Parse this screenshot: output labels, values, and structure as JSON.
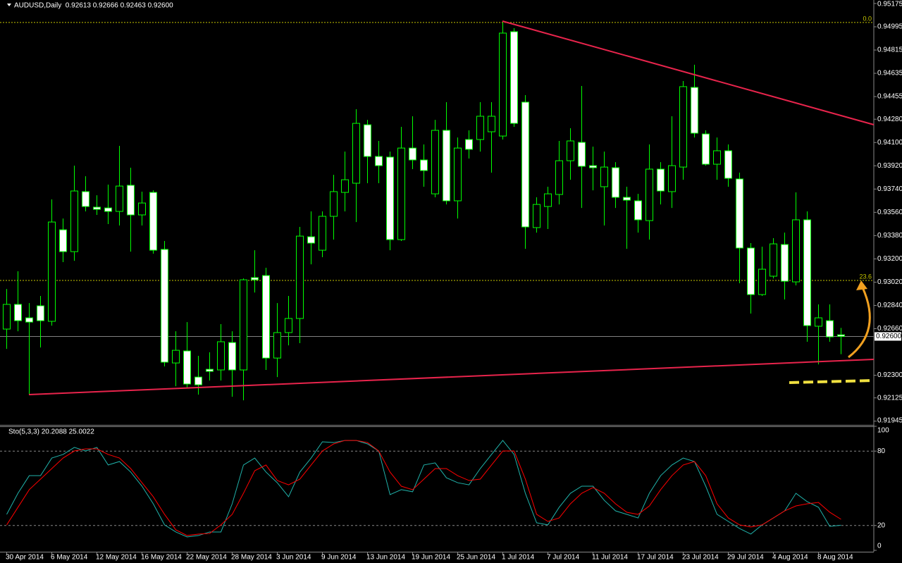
{
  "chart_data": [
    {
      "type": "candlestick",
      "title": "AUDUSD,Daily  0.92613 0.92666 0.92463 0.92600",
      "categories": [
        "30 Apr 2014",
        null,
        null,
        null,
        "6 May 2014",
        null,
        null,
        null,
        "12 May 2014",
        null,
        null,
        null,
        "16 May 2014",
        null,
        null,
        null,
        "22 May 2014",
        null,
        null,
        null,
        "28 May 2014",
        null,
        null,
        null,
        "3 Jun 2014",
        null,
        null,
        null,
        "9 Jun 2014",
        null,
        null,
        null,
        "13 Jun 2014",
        null,
        null,
        null,
        "19 Jun 2014",
        null,
        null,
        null,
        "25 Jun 2014",
        null,
        null,
        null,
        "1 Jul 2014",
        null,
        null,
        null,
        "7 Jul 2014",
        null,
        null,
        null,
        "11 Jul 2014",
        null,
        null,
        null,
        "17 Jul 2014",
        null,
        null,
        null,
        "23 Jul 2014",
        null,
        null,
        null,
        "29 Jul 2014",
        null,
        null,
        null,
        "4 Aug 2014",
        null,
        null,
        null,
        "8 Aug 2014",
        null,
        null
      ],
      "open": [
        0.92657,
        0.92848,
        0.92744,
        0.92837,
        0.92717,
        0.93425,
        0.93256,
        0.9372,
        0.936,
        0.93594,
        0.93567,
        0.93769,
        0.9354,
        0.93714,
        0.93273,
        0.92395,
        0.92488,
        0.92286,
        0.92346,
        0.92341,
        0.92553,
        0.92341,
        0.93055,
        0.93071,
        0.92433,
        0.9263,
        0.92739,
        0.93371,
        0.93267,
        0.93529,
        0.93714,
        0.93785,
        0.94237,
        0.93992,
        0.93987,
        0.93349,
        0.94057,
        0.93965,
        0.93703,
        0.94194,
        0.93649,
        0.94123,
        0.94123,
        0.94183,
        0.9415,
        0.94957,
        0.94412,
        0.93442,
        0.93605,
        0.93698,
        0.93959,
        0.94101,
        0.93921,
        0.93758,
        0.93905,
        0.93676,
        0.93649,
        0.93496,
        0.93894,
        0.9372,
        0.9391,
        0.94526,
        0.94166,
        0.93932,
        0.94036,
        0.93818,
        0.93284,
        0.92924,
        0.93066,
        0.93311,
        0.93022,
        0.93502,
        0.92679,
        0.92722,
        0.92613
      ],
      "high": [
        0.92967,
        0.93104,
        0.92858,
        0.92913,
        0.9366,
        0.93512,
        0.93921,
        0.93839,
        0.93692,
        0.93774,
        0.94074,
        0.93905,
        0.9372,
        0.9373,
        0.93338,
        0.9264,
        0.92711,
        0.9245,
        0.92477,
        0.92695,
        0.9264,
        0.93049,
        0.93267,
        0.93131,
        0.92858,
        0.92913,
        0.93447,
        0.93567,
        0.93567,
        0.9385,
        0.9403,
        0.94357,
        0.94275,
        0.94112,
        0.9403,
        0.94221,
        0.94303,
        0.94085,
        0.94275,
        0.94412,
        0.94139,
        0.94194,
        0.94412,
        0.94412,
        0.95028,
        0.94984,
        0.94466,
        0.93676,
        0.93758,
        0.94112,
        0.9421,
        0.94537,
        0.94068,
        0.9403,
        0.93948,
        0.93758,
        0.93703,
        0.94085,
        0.93948,
        0.94303,
        0.94575,
        0.94701,
        0.94194,
        0.94139,
        0.94085,
        0.93867,
        0.93322,
        0.93294,
        0.9336,
        0.93403,
        0.93714,
        0.93567,
        0.92848,
        0.92848,
        0.92666
      ],
      "low": [
        0.92504,
        0.9264,
        0.9215,
        0.92515,
        0.92684,
        0.93175,
        0.93185,
        0.93567,
        0.9354,
        0.93469,
        0.93458,
        0.93256,
        0.93458,
        0.9324,
        0.92368,
        0.92215,
        0.92204,
        0.9215,
        0.92259,
        0.92259,
        0.92134,
        0.92106,
        0.9294,
        0.92341,
        0.92286,
        0.92531,
        0.92548,
        0.93158,
        0.93213,
        0.93349,
        0.93567,
        0.93485,
        0.93785,
        0.93785,
        0.93267,
        0.93338,
        0.93894,
        0.93758,
        0.93676,
        0.93621,
        0.93512,
        0.93976,
        0.9403,
        0.93867,
        0.94123,
        0.94221,
        0.93278,
        0.93403,
        0.93431,
        0.93621,
        0.93812,
        0.93594,
        0.9373,
        0.93458,
        0.93594,
        0.93278,
        0.93403,
        0.93349,
        0.93621,
        0.93594,
        0.93812,
        0.94139,
        0.93921,
        0.93812,
        0.93758,
        0.93011,
        0.92777,
        0.92913,
        0.93049,
        0.92886,
        0.92995,
        0.92559,
        0.92384,
        0.92559,
        0.92463
      ],
      "close": [
        0.92848,
        0.92722,
        0.92711,
        0.92722,
        0.93485,
        0.93256,
        0.93725,
        0.93605,
        0.93583,
        0.93567,
        0.93763,
        0.9354,
        0.93632,
        0.93267,
        0.92401,
        0.92493,
        0.92232,
        0.92226,
        0.9233,
        0.92559,
        0.92341,
        0.93038,
        0.93038,
        0.92433,
        0.9263,
        0.92739,
        0.93376,
        0.93322,
        0.93529,
        0.9372,
        0.93812,
        0.94248,
        0.93992,
        0.93921,
        0.93349,
        0.94057,
        0.93965,
        0.93883,
        0.94194,
        0.93649,
        0.94057,
        0.94047,
        0.94303,
        0.94303,
        0.94946,
        0.94248,
        0.93447,
        0.93621,
        0.93703,
        0.93959,
        0.94112,
        0.93916,
        0.93905,
        0.9391,
        0.93676,
        0.93654,
        0.93502,
        0.93894,
        0.93725,
        0.93921,
        0.94532,
        0.94172,
        0.93932,
        0.94036,
        0.93823,
        0.93284,
        0.92924,
        0.9312,
        0.93316,
        0.93027,
        0.93502,
        0.92684,
        0.92744,
        0.92597,
        0.926
      ],
      "color": "#00ff00",
      "up_fill": "#000000",
      "down_fill": "#ffffff",
      "ylim": [
        0.91916,
        0.95202
      ],
      "yticks": [
        0.95175,
        0.94995,
        0.94815,
        0.94635,
        0.94455,
        {
          "value": 0.9428,
          "label": "0.94280"
        },
        {
          "value": 0.941,
          "label": "0.94100"
        },
        {
          "value": 0.9392,
          "label": "0.93920"
        },
        {
          "value": 0.9374,
          "label": "0.93740"
        },
        {
          "value": 0.9356,
          "label": "0.93560"
        },
        {
          "value": 0.9338,
          "label": "0.93380"
        },
        {
          "value": 0.932,
          "label": "0.93200"
        },
        {
          "value": 0.9302,
          "label": "0.93020"
        },
        {
          "value": 0.9284,
          "label": "0.92840"
        },
        {
          "value": 0.9266,
          "label": "0.92660"
        },
        {
          "value": 0.923,
          "label": "0.92300"
        },
        0.92125,
        0.91945
      ],
      "current_price": {
        "value": 0.926,
        "label": "0.92600"
      },
      "fibo_levels": [
        {
          "value": 0.95028,
          "label": "0.0"
        },
        {
          "value": 0.93033,
          "label": "23.6"
        }
      ],
      "fibo_color": "#c8c800"
    },
    {
      "type": "line",
      "title": "Sto(5,3,3) 20.2088 25.0022",
      "series": [
        {
          "color": "#20b2aa",
          "values": [
            29.0,
            46.0,
            60.2,
            60.2,
            74.4,
            77.3,
            83.0,
            80.1,
            83.0,
            68.8,
            71.6,
            63.1,
            51.7,
            37.5,
            20.5,
            14.8,
            10.8,
            11.9,
            14.8,
            14.8,
            37.5,
            68.8,
            74.4,
            63.1,
            54.5,
            43.2,
            63.1,
            74.4,
            87.5,
            86.9,
            88.6,
            88.6,
            85.8,
            80.1,
            44.9,
            48.9,
            47.2,
            68.8,
            70.5,
            58.5,
            54.5,
            52.8,
            65.9,
            77.3,
            88.6,
            77.3,
            46.0,
            22.2,
            20.5,
            34.7,
            46.0,
            51.7,
            51.7,
            40.3,
            31.8,
            29.0,
            26.1,
            46.0,
            60.2,
            68.8,
            74.4,
            71.6,
            51.7,
            29.0,
            23.3,
            17.6,
            13.1,
            20.5,
            26.1,
            31.8,
            46.0,
            39.2,
            34.7,
            19.3,
            20.2088
          ]
        },
        {
          "color": "#ff0000",
          "values": [
            20.5,
            34.7,
            48.9,
            57.4,
            65.9,
            74.4,
            80.1,
            81.8,
            81.8,
            77.3,
            74.4,
            65.9,
            54.5,
            43.2,
            29.0,
            16.5,
            11.9,
            13.1,
            13.6,
            20.5,
            29.0,
            46.0,
            64.2,
            68.8,
            56.3,
            52.8,
            57.4,
            68.8,
            80.1,
            85.8,
            88.6,
            88.6,
            86.9,
            80.1,
            63.1,
            51.7,
            48.9,
            57.4,
            65.9,
            65.9,
            60.2,
            56.3,
            57.4,
            68.8,
            80.1,
            80.1,
            57.4,
            29.0,
            23.3,
            26.1,
            37.5,
            46.0,
            50.6,
            46.0,
            37.5,
            30.7,
            29.0,
            35.8,
            48.9,
            60.2,
            68.8,
            71.6,
            60.2,
            37.5,
            26.1,
            20.5,
            18.8,
            20.5,
            26.1,
            31.8,
            35.8,
            37.5,
            38.6,
            30.7,
            25.0022
          ]
        }
      ],
      "levels": [
        20,
        80
      ],
      "ylim": [
        0,
        100
      ],
      "yticks": [
        0,
        20,
        80,
        100
      ]
    }
  ]
}
